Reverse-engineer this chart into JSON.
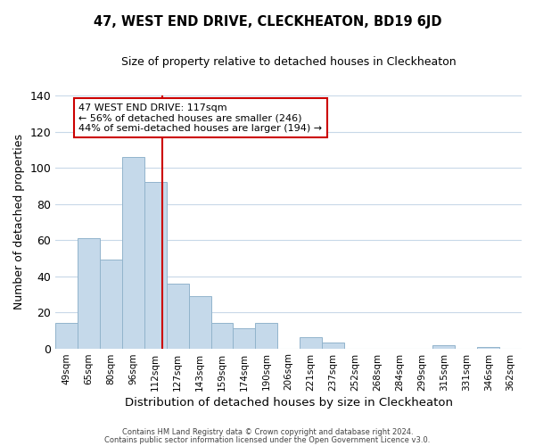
{
  "title": "47, WEST END DRIVE, CLECKHEATON, BD19 6JD",
  "subtitle": "Size of property relative to detached houses in Cleckheaton",
  "xlabel": "Distribution of detached houses by size in Cleckheaton",
  "ylabel": "Number of detached properties",
  "bar_labels": [
    "49sqm",
    "65sqm",
    "80sqm",
    "96sqm",
    "112sqm",
    "127sqm",
    "143sqm",
    "159sqm",
    "174sqm",
    "190sqm",
    "206sqm",
    "221sqm",
    "237sqm",
    "252sqm",
    "268sqm",
    "284sqm",
    "299sqm",
    "315sqm",
    "331sqm",
    "346sqm",
    "362sqm"
  ],
  "bar_values": [
    14,
    61,
    49,
    106,
    92,
    36,
    29,
    14,
    11,
    14,
    0,
    6,
    3,
    0,
    0,
    0,
    0,
    2,
    0,
    1,
    0
  ],
  "bar_color": "#c5d9ea",
  "bar_edge_color": "#92b4cc",
  "vline_color": "#cc0000",
  "vline_x": 4.3,
  "ylim": [
    0,
    140
  ],
  "yticks": [
    0,
    20,
    40,
    60,
    80,
    100,
    120,
    140
  ],
  "annotation_text": "47 WEST END DRIVE: 117sqm\n← 56% of detached houses are smaller (246)\n44% of semi-detached houses are larger (194) →",
  "annotation_box_color": "#ffffff",
  "annotation_box_edge": "#cc0000",
  "footer_line1": "Contains HM Land Registry data © Crown copyright and database right 2024.",
  "footer_line2": "Contains public sector information licensed under the Open Government Licence v3.0.",
  "background_color": "#ffffff",
  "grid_color": "#c8d8e8"
}
